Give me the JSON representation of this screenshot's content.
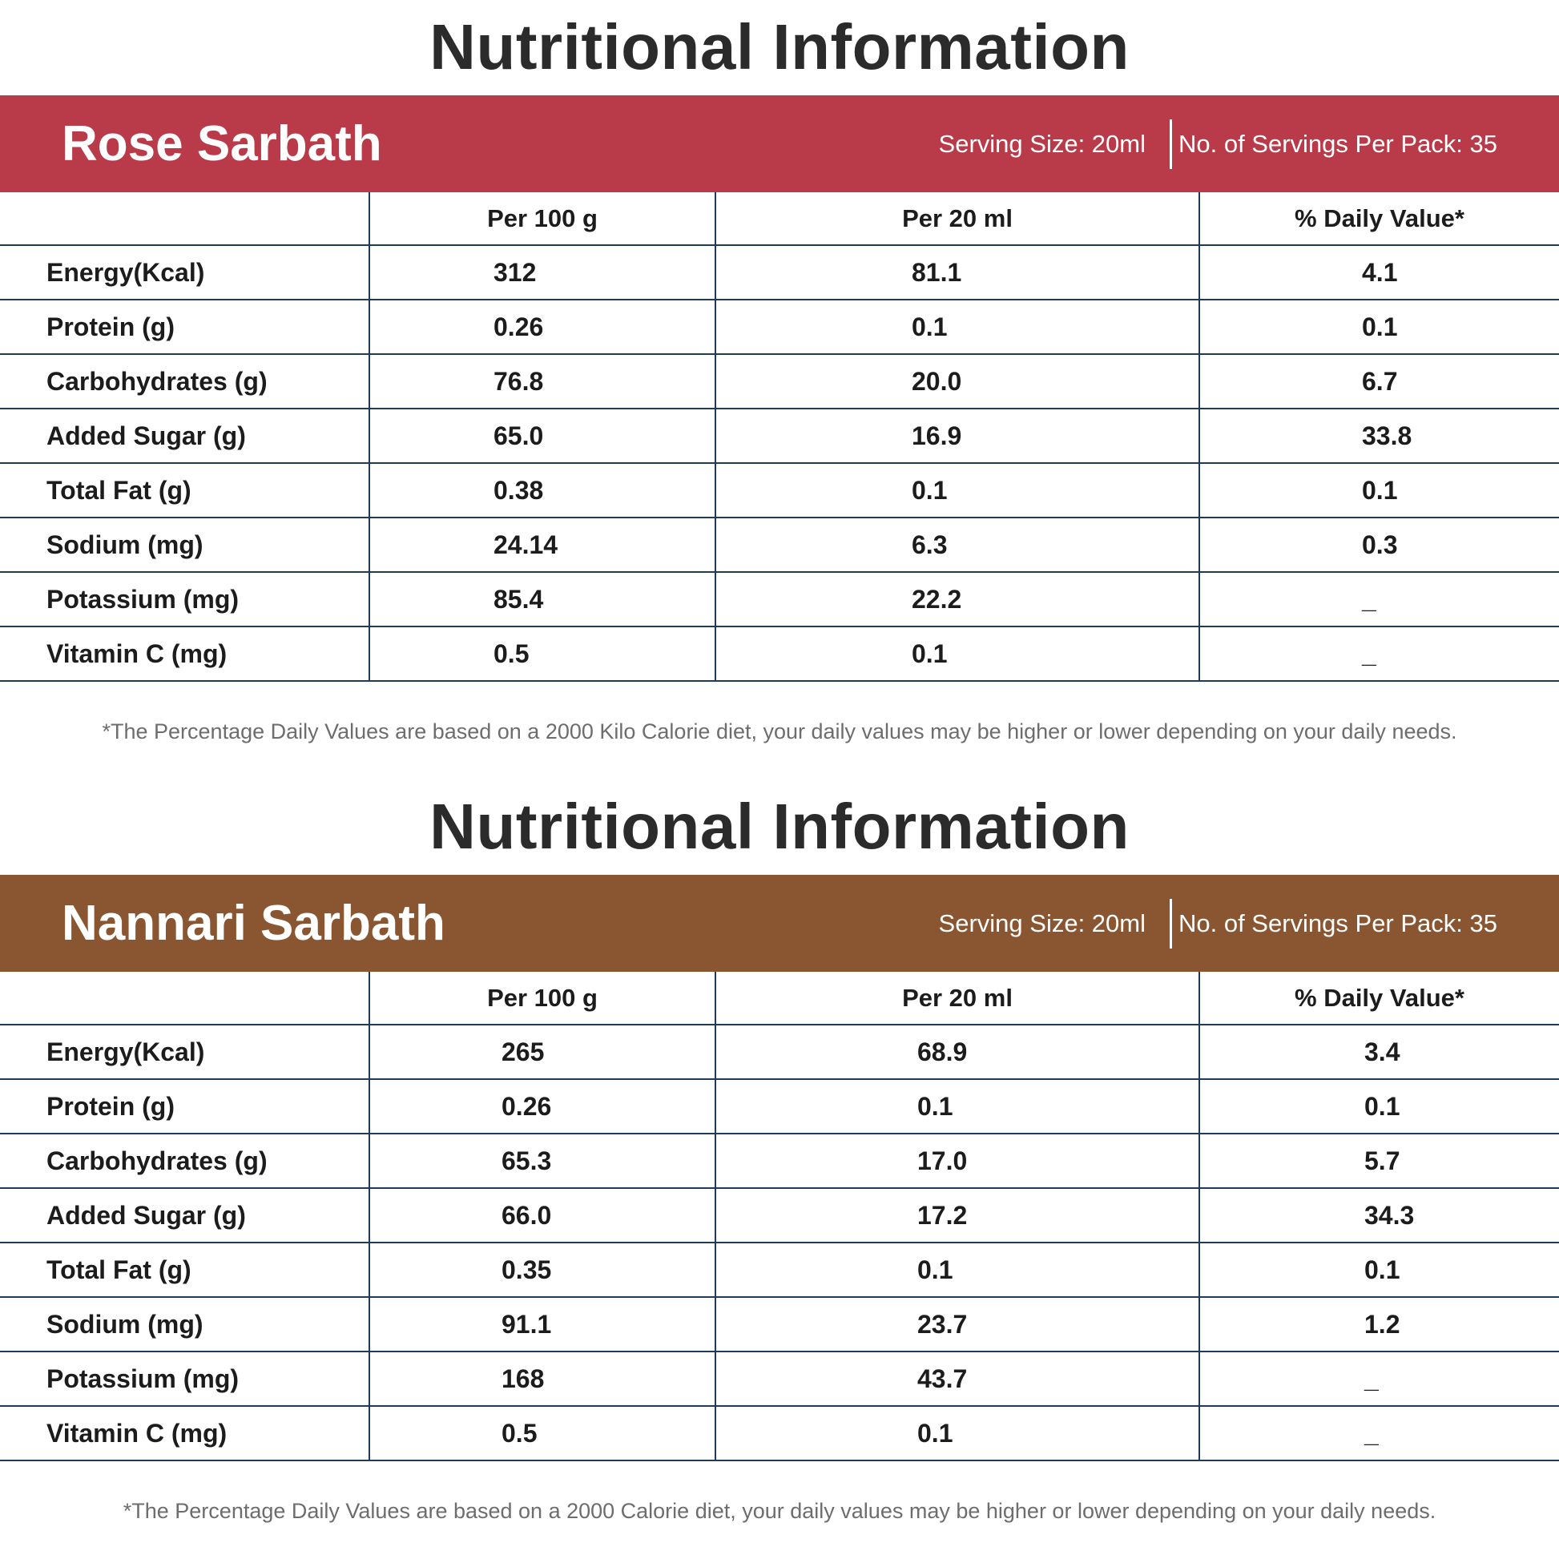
{
  "colors": {
    "rose_band": "#b93a48",
    "nannari_band": "#8a5632",
    "grid_line": "#1f3b57",
    "title_text": "#2b2b2b",
    "footnote_text": "#6d6d6d"
  },
  "panels": [
    {
      "title": "Nutritional Information",
      "product_name": "Rose Sarbath",
      "serving_size": "Serving Size: 20ml",
      "servings_per_pack": "No. of Servings Per Pack: 35",
      "columns": [
        "",
        "Per 100 g",
        "Per 20 ml",
        "% Daily Value*"
      ],
      "rows": [
        {
          "label": "Energy(Kcal)",
          "per100": "312",
          "per20": "81.1",
          "dv": "4.1"
        },
        {
          "label": "Protein (g)",
          "per100": "0.26",
          "per20": "0.1",
          "dv": "0.1"
        },
        {
          "label": "Carbohydrates (g)",
          "per100": "76.8",
          "per20": "20.0",
          "dv": "6.7"
        },
        {
          "label": "Added Sugar (g)",
          "per100": "65.0",
          "per20": "16.9",
          "dv": "33.8"
        },
        {
          "label": "Total Fat (g)",
          "per100": "0.38",
          "per20": "0.1",
          "dv": "0.1"
        },
        {
          "label": "Sodium (mg)",
          "per100": "24.14",
          "per20": "6.3",
          "dv": "0.3"
        },
        {
          "label": "Potassium (mg)",
          "per100": "85.4",
          "per20": "22.2",
          "dv": "_"
        },
        {
          "label": "Vitamin C (mg)",
          "per100": "0.5",
          "per20": "0.1",
          "dv": "_"
        }
      ],
      "footnote": "*The Percentage Daily Values are based on a 2000 Kilo Calorie diet, your daily values may be higher or lower depending on your daily needs."
    },
    {
      "title": "Nutritional Information",
      "product_name": "Nannari Sarbath",
      "serving_size": "Serving Size: 20ml",
      "servings_per_pack": "No. of Servings Per Pack: 35",
      "columns": [
        "",
        "Per 100 g",
        "Per 20 ml",
        "% Daily Value*"
      ],
      "rows": [
        {
          "label": "Energy(Kcal)",
          "per100": "265",
          "per20": "68.9",
          "dv": "3.4"
        },
        {
          "label": "Protein (g)",
          "per100": "0.26",
          "per20": "0.1",
          "dv": "0.1"
        },
        {
          "label": "Carbohydrates (g)",
          "per100": "65.3",
          "per20": "17.0",
          "dv": "5.7"
        },
        {
          "label": "Added Sugar (g)",
          "per100": "66.0",
          "per20": "17.2",
          "dv": "34.3"
        },
        {
          "label": "Total Fat (g)",
          "per100": "0.35",
          "per20": "0.1",
          "dv": "0.1"
        },
        {
          "label": "Sodium (mg)",
          "per100": "91.1",
          "per20": "23.7",
          "dv": "1.2"
        },
        {
          "label": "Potassium (mg)",
          "per100": "168",
          "per20": "43.7",
          "dv": "_"
        },
        {
          "label": "Vitamin C (mg)",
          "per100": "0.5",
          "per20": "0.1",
          "dv": "_"
        }
      ],
      "footnote": "*The Percentage Daily Values are based on a 2000 Calorie diet, your daily values may be higher or lower depending on your daily needs."
    }
  ]
}
